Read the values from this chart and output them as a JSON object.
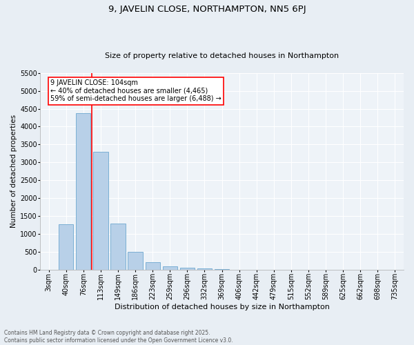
{
  "title1": "9, JAVELIN CLOSE, NORTHAMPTON, NN5 6PJ",
  "title2": "Size of property relative to detached houses in Northampton",
  "xlabel": "Distribution of detached houses by size in Northampton",
  "ylabel": "Number of detached properties",
  "footer1": "Contains HM Land Registry data © Crown copyright and database right 2025.",
  "footer2": "Contains public sector information licensed under the Open Government Licence v3.0.",
  "bar_labels": [
    "3sqm",
    "40sqm",
    "76sqm",
    "113sqm",
    "149sqm",
    "186sqm",
    "223sqm",
    "259sqm",
    "296sqm",
    "332sqm",
    "369sqm",
    "406sqm",
    "442sqm",
    "479sqm",
    "515sqm",
    "552sqm",
    "589sqm",
    "625sqm",
    "662sqm",
    "698sqm",
    "735sqm"
  ],
  "bar_values": [
    0,
    1270,
    4380,
    3300,
    1280,
    500,
    200,
    100,
    60,
    30,
    10,
    0,
    0,
    0,
    0,
    0,
    0,
    0,
    0,
    0,
    0
  ],
  "bar_color": "#b8d0e8",
  "bar_edgecolor": "#7aafd4",
  "vline_color": "red",
  "vline_pos": 2.5,
  "ylim": [
    0,
    5500
  ],
  "yticks": [
    0,
    500,
    1000,
    1500,
    2000,
    2500,
    3000,
    3500,
    4000,
    4500,
    5000,
    5500
  ],
  "annotation_text": "9 JAVELIN CLOSE: 104sqm\n← 40% of detached houses are smaller (4,465)\n59% of semi-detached houses are larger (6,488) →",
  "bg_color": "#e8eef4",
  "plot_bg": "#eef3f8",
  "grid_color": "#ffffff",
  "title1_fontsize": 9.5,
  "title2_fontsize": 8,
  "ylabel_fontsize": 7.5,
  "xlabel_fontsize": 8,
  "tick_fontsize": 7,
  "annot_fontsize": 7,
  "footer_fontsize": 5.5
}
